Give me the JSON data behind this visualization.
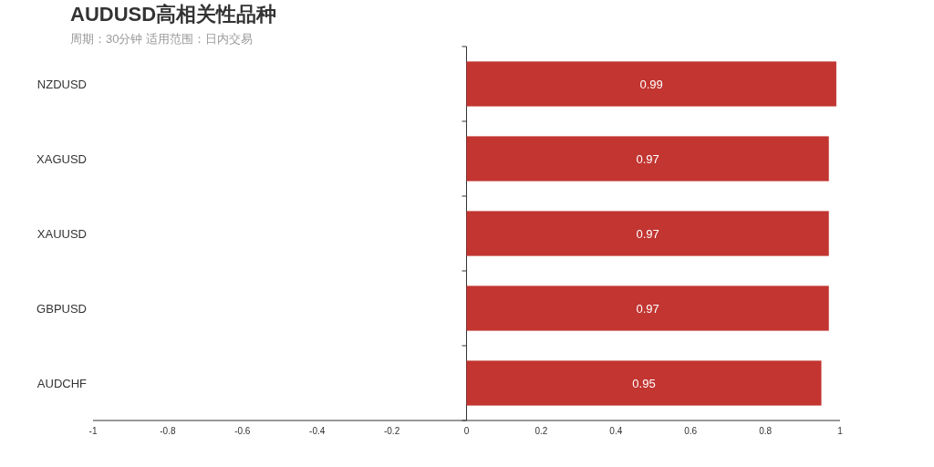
{
  "chart_data": {
    "type": "bar",
    "orientation": "horizontal",
    "title": "AUDUSD高相关性品种",
    "subtitle": "周期：30分钟 适用范围：日内交易",
    "categories": [
      "NZDUSD",
      "XAGUSD",
      "XAUUSD",
      "GBPUSD",
      "AUDCHF"
    ],
    "values": [
      0.99,
      0.97,
      0.97,
      0.97,
      0.95
    ],
    "color": "#c23531",
    "xlim": [
      -1,
      1
    ],
    "xticks": [
      -1,
      -0.8,
      -0.6,
      -0.4,
      -0.2,
      0,
      0.2,
      0.4,
      0.6,
      0.8,
      1
    ],
    "data_labels": true
  }
}
